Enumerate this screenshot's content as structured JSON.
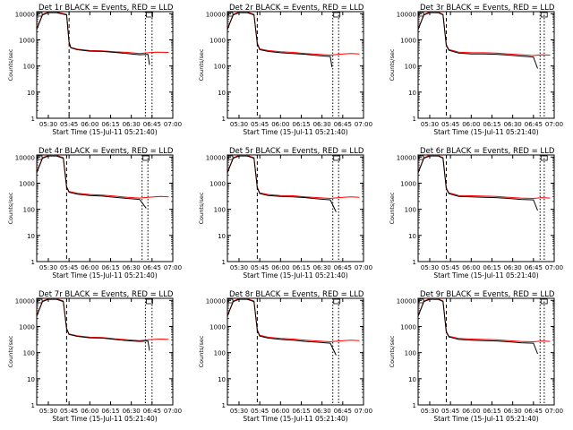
{
  "legend_suffix": "BLACK = Events, RED = LLD",
  "colors": {
    "events": "#000000",
    "lld": "#ff0000",
    "axis": "#000000"
  },
  "chart_data": [
    {
      "type": "line",
      "title": "Det 1r",
      "ylabel": "Counts/sec",
      "xlabel": "Start Time (15-Jul-11 05:21:40)",
      "xticks": [
        "05:30",
        "05:45",
        "06:00",
        "06:15",
        "06:30",
        "06:45",
        "07:00"
      ],
      "yticks": [
        "1",
        "10",
        "100",
        "1000",
        "10000"
      ],
      "yscale": "log",
      "ylim": [
        1,
        12000
      ],
      "xlim_hours": [
        5.36,
        7.0
      ],
      "vlines_hours": [
        5.75,
        6.67,
        6.75
      ],
      "series": [
        {
          "name": "Events",
          "x": [
            5.36,
            5.43,
            5.5,
            5.6,
            5.72,
            5.75,
            5.77,
            5.85,
            6.0,
            6.15,
            6.3,
            6.45,
            6.6,
            6.7,
            6.72
          ],
          "y": [
            2500,
            9000,
            11000,
            11000,
            9000,
            800,
            500,
            420,
            370,
            360,
            330,
            300,
            270,
            280,
            110
          ]
        },
        {
          "name": "LLD",
          "x": [
            5.36,
            5.43,
            5.5,
            5.6,
            5.72,
            5.75,
            5.77,
            5.85,
            6.0,
            6.15,
            6.3,
            6.45,
            6.6,
            6.7,
            6.8,
            6.95
          ],
          "y": [
            2600,
            9500,
            11500,
            11500,
            9500,
            850,
            520,
            440,
            390,
            380,
            350,
            330,
            300,
            320,
            340,
            330
          ]
        }
      ]
    },
    {
      "type": "line",
      "title": "Det 2r",
      "ylabel": "Counts/sec",
      "xlabel": "Start Time (15-Jul-11 05:21:40)",
      "xticks": [
        "05:30",
        "05:45",
        "06:00",
        "06:15",
        "06:30",
        "06:45",
        "07:00"
      ],
      "yticks": [
        "1",
        "10",
        "100",
        "1000",
        "10000"
      ],
      "yscale": "log",
      "ylim": [
        1,
        12000
      ],
      "xlim_hours": [
        5.36,
        7.0
      ],
      "vlines_hours": [
        5.72,
        6.63,
        6.7
      ],
      "series": [
        {
          "name": "Events",
          "x": [
            5.36,
            5.43,
            5.5,
            5.6,
            5.68,
            5.72,
            5.75,
            5.85,
            6.0,
            6.15,
            6.3,
            6.45,
            6.6,
            6.62
          ],
          "y": [
            2500,
            9000,
            11000,
            11000,
            9000,
            700,
            420,
            360,
            320,
            300,
            280,
            250,
            230,
            90
          ]
        },
        {
          "name": "LLD",
          "x": [
            5.36,
            5.43,
            5.5,
            5.6,
            5.68,
            5.72,
            5.75,
            5.85,
            6.0,
            6.15,
            6.3,
            6.45,
            6.6,
            6.7,
            6.85,
            6.95
          ],
          "y": [
            2600,
            9500,
            11500,
            11500,
            9500,
            750,
            450,
            390,
            350,
            330,
            300,
            280,
            260,
            280,
            300,
            290
          ]
        }
      ]
    },
    {
      "type": "line",
      "title": "Det 3r",
      "ylabel": "Counts/sec",
      "xlabel": "Start Time (15-Jul-11 05:21:40)",
      "xticks": [
        "05:30",
        "05:45",
        "06:00",
        "06:15",
        "06:30",
        "06:45",
        "07:00"
      ],
      "yticks": [
        "1",
        "10",
        "100",
        "1000",
        "10000"
      ],
      "yscale": "log",
      "ylim": [
        1,
        12000
      ],
      "xlim_hours": [
        5.36,
        7.0
      ],
      "vlines_hours": [
        5.7,
        6.83,
        6.88
      ],
      "series": [
        {
          "name": "Events",
          "x": [
            5.36,
            5.43,
            5.5,
            5.6,
            5.66,
            5.7,
            5.73,
            5.85,
            6.0,
            6.15,
            6.3,
            6.45,
            6.6,
            6.75,
            6.8
          ],
          "y": [
            2500,
            9000,
            11000,
            11000,
            9000,
            600,
            400,
            310,
            290,
            290,
            280,
            260,
            240,
            220,
            80
          ]
        },
        {
          "name": "LLD",
          "x": [
            5.36,
            5.43,
            5.5,
            5.6,
            5.66,
            5.7,
            5.73,
            5.85,
            6.0,
            6.15,
            6.3,
            6.45,
            6.6,
            6.75,
            6.85,
            6.95
          ],
          "y": [
            2600,
            9500,
            11500,
            11500,
            9500,
            650,
            430,
            340,
            320,
            320,
            310,
            290,
            270,
            250,
            270,
            260
          ]
        }
      ]
    },
    {
      "type": "line",
      "title": "Det 4r",
      "ylabel": "Counts/sec",
      "xlabel": "Start Time (15-Jul-11 05:21:40)",
      "xticks": [
        "05:30",
        "05:45",
        "06:00",
        "06:15",
        "06:30",
        "06:45",
        "07:00"
      ],
      "yticks": [
        "1",
        "10",
        "100",
        "1000",
        "10000"
      ],
      "yscale": "log",
      "ylim": [
        1,
        12000
      ],
      "xlim_hours": [
        5.36,
        7.0
      ],
      "vlines_hours": [
        5.72,
        6.63,
        6.7
      ],
      "series": [
        {
          "name": "Events",
          "x": [
            5.36,
            5.43,
            5.5,
            5.6,
            5.68,
            5.72,
            5.75,
            5.85,
            6.0,
            6.15,
            6.3,
            6.45,
            6.6,
            6.68
          ],
          "y": [
            2500,
            9000,
            11000,
            11000,
            9000,
            700,
            450,
            380,
            340,
            320,
            290,
            260,
            240,
            110
          ]
        },
        {
          "name": "LLD",
          "x": [
            5.36,
            5.43,
            5.5,
            5.6,
            5.68,
            5.72,
            5.75,
            5.85,
            6.0,
            6.15,
            6.3,
            6.45,
            6.6,
            6.7,
            6.85,
            6.95
          ],
          "y": [
            2600,
            9500,
            11500,
            11500,
            9500,
            750,
            480,
            410,
            370,
            350,
            320,
            290,
            270,
            290,
            310,
            300
          ]
        }
      ]
    },
    {
      "type": "line",
      "title": "Det 5r",
      "ylabel": "Counts/sec",
      "xlabel": "Start Time (15-Jul-11 05:21:40)",
      "xticks": [
        "05:30",
        "05:45",
        "06:00",
        "06:15",
        "06:30",
        "06:45",
        "07:00"
      ],
      "yticks": [
        "1",
        "10",
        "100",
        "1000",
        "10000"
      ],
      "yscale": "log",
      "ylim": [
        1,
        12000
      ],
      "xlim_hours": [
        5.36,
        7.0
      ],
      "vlines_hours": [
        5.72,
        6.63,
        6.7
      ],
      "series": [
        {
          "name": "Events",
          "x": [
            5.36,
            5.43,
            5.5,
            5.6,
            5.68,
            5.72,
            5.75,
            5.85,
            6.0,
            6.15,
            6.3,
            6.45,
            6.6,
            6.67
          ],
          "y": [
            2500,
            9000,
            11000,
            11000,
            9000,
            650,
            400,
            340,
            310,
            300,
            280,
            250,
            230,
            80
          ]
        },
        {
          "name": "LLD",
          "x": [
            5.36,
            5.43,
            5.5,
            5.6,
            5.68,
            5.72,
            5.75,
            5.85,
            6.0,
            6.15,
            6.3,
            6.45,
            6.6,
            6.7,
            6.85,
            6.95
          ],
          "y": [
            2600,
            9500,
            11500,
            11500,
            9500,
            700,
            430,
            370,
            340,
            330,
            300,
            280,
            260,
            280,
            300,
            290
          ]
        }
      ]
    },
    {
      "type": "line",
      "title": "Det 6r",
      "ylabel": "Counts/sec",
      "xlabel": "Start Time (15-Jul-11 05:21:40)",
      "xticks": [
        "05:30",
        "05:45",
        "06:00",
        "06:15",
        "06:30",
        "06:45",
        "07:00"
      ],
      "yticks": [
        "1",
        "10",
        "100",
        "1000",
        "10000"
      ],
      "yscale": "log",
      "ylim": [
        1,
        12000
      ],
      "xlim_hours": [
        5.36,
        7.0
      ],
      "vlines_hours": [
        5.7,
        6.83,
        6.88
      ],
      "series": [
        {
          "name": "Events",
          "x": [
            5.36,
            5.43,
            5.5,
            5.6,
            5.66,
            5.7,
            5.73,
            5.85,
            6.0,
            6.15,
            6.3,
            6.45,
            6.6,
            6.75,
            6.8
          ],
          "y": [
            2500,
            9000,
            11000,
            11000,
            9000,
            600,
            400,
            310,
            300,
            290,
            280,
            260,
            240,
            230,
            90
          ]
        },
        {
          "name": "LLD",
          "x": [
            5.36,
            5.43,
            5.5,
            5.6,
            5.66,
            5.7,
            5.73,
            5.85,
            6.0,
            6.15,
            6.3,
            6.45,
            6.6,
            6.75,
            6.85,
            6.95
          ],
          "y": [
            2600,
            9500,
            11500,
            11500,
            9500,
            650,
            430,
            340,
            330,
            320,
            310,
            290,
            270,
            260,
            280,
            270
          ]
        }
      ]
    },
    {
      "type": "line",
      "title": "Det 7r",
      "ylabel": "Counts/sec",
      "xlabel": "Start Time (15-Jul-11 05:21:40)",
      "xticks": [
        "05:30",
        "05:45",
        "06:00",
        "06:15",
        "06:30",
        "06:45",
        "07:00"
      ],
      "yticks": [
        "1",
        "10",
        "100",
        "1000",
        "10000"
      ],
      "yscale": "log",
      "ylim": [
        1,
        12000
      ],
      "xlim_hours": [
        5.36,
        7.0
      ],
      "vlines_hours": [
        5.72,
        6.67,
        6.75
      ],
      "series": [
        {
          "name": "Events",
          "x": [
            5.36,
            5.43,
            5.5,
            5.6,
            5.68,
            5.72,
            5.75,
            5.85,
            6.0,
            6.15,
            6.3,
            6.45,
            6.6,
            6.7,
            6.72
          ],
          "y": [
            2500,
            9000,
            11000,
            11000,
            9000,
            800,
            500,
            420,
            370,
            360,
            320,
            290,
            270,
            280,
            120
          ]
        },
        {
          "name": "LLD",
          "x": [
            5.36,
            5.43,
            5.5,
            5.6,
            5.68,
            5.72,
            5.75,
            5.85,
            6.0,
            6.15,
            6.3,
            6.45,
            6.6,
            6.7,
            6.85,
            6.95
          ],
          "y": [
            2600,
            9500,
            11500,
            11500,
            9500,
            850,
            520,
            440,
            390,
            380,
            340,
            310,
            290,
            310,
            330,
            320
          ]
        }
      ]
    },
    {
      "type": "line",
      "title": "Det 8r",
      "ylabel": "Counts/sec",
      "xlabel": "Start Time (15-Jul-11 05:21:40)",
      "xticks": [
        "05:30",
        "05:45",
        "06:00",
        "06:15",
        "06:30",
        "06:45",
        "07:00"
      ],
      "yticks": [
        "1",
        "10",
        "100",
        "1000",
        "10000"
      ],
      "yscale": "log",
      "ylim": [
        1,
        12000
      ],
      "xlim_hours": [
        5.36,
        7.0
      ],
      "vlines_hours": [
        5.72,
        6.63,
        6.7
      ],
      "series": [
        {
          "name": "Events",
          "x": [
            5.36,
            5.43,
            5.5,
            5.6,
            5.68,
            5.72,
            5.75,
            5.85,
            6.0,
            6.15,
            6.3,
            6.45,
            6.6,
            6.67
          ],
          "y": [
            2500,
            9000,
            11000,
            11000,
            9000,
            700,
            430,
            360,
            320,
            300,
            270,
            250,
            230,
            80
          ]
        },
        {
          "name": "LLD",
          "x": [
            5.36,
            5.43,
            5.5,
            5.6,
            5.68,
            5.72,
            5.75,
            5.85,
            6.0,
            6.15,
            6.3,
            6.45,
            6.6,
            6.7,
            6.85,
            6.95
          ],
          "y": [
            2600,
            9500,
            11500,
            11500,
            9500,
            750,
            460,
            390,
            350,
            330,
            300,
            280,
            260,
            280,
            300,
            290
          ]
        }
      ]
    },
    {
      "type": "line",
      "title": "Det 9r",
      "ylabel": "Counts/sec",
      "xlabel": "Start Time (15-Jul-11 05:21:40)",
      "xticks": [
        "05:30",
        "05:45",
        "06:00",
        "06:15",
        "06:30",
        "06:45",
        "07:00"
      ],
      "yticks": [
        "1",
        "10",
        "100",
        "1000",
        "10000"
      ],
      "yscale": "log",
      "ylim": [
        1,
        12000
      ],
      "xlim_hours": [
        5.36,
        7.0
      ],
      "vlines_hours": [
        5.7,
        6.83,
        6.88
      ],
      "series": [
        {
          "name": "Events",
          "x": [
            5.36,
            5.43,
            5.5,
            5.6,
            5.66,
            5.7,
            5.73,
            5.85,
            6.0,
            6.15,
            6.3,
            6.45,
            6.6,
            6.75,
            6.8
          ],
          "y": [
            2500,
            9000,
            11000,
            11000,
            9000,
            600,
            400,
            320,
            300,
            290,
            280,
            260,
            240,
            230,
            90
          ]
        },
        {
          "name": "LLD",
          "x": [
            5.36,
            5.43,
            5.5,
            5.6,
            5.66,
            5.7,
            5.73,
            5.85,
            6.0,
            6.15,
            6.3,
            6.45,
            6.6,
            6.75,
            6.85,
            6.95
          ],
          "y": [
            2600,
            9500,
            11500,
            11500,
            9500,
            650,
            430,
            350,
            330,
            320,
            310,
            290,
            270,
            260,
            280,
            270
          ]
        }
      ]
    }
  ]
}
